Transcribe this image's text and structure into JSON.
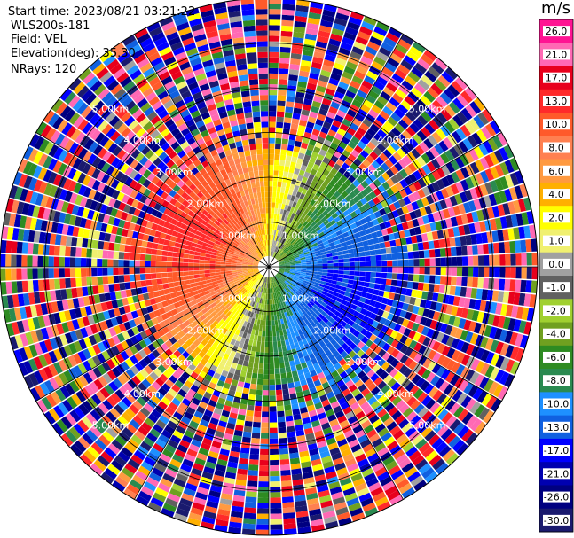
{
  "info": {
    "start_time": "Start time: 2023/08/21 03:21:22",
    "instrument": "WLS200s-181",
    "field": "Field: VEL",
    "elevation": "Elevation(deg): 35.30",
    "nrays": "NRays: 120"
  },
  "colorbar": {
    "unit": "m/s",
    "ticks": [
      "26.0",
      "21.0",
      "17.0",
      "13.0",
      "10.0",
      "8.0",
      "6.0",
      "4.0",
      "2.0",
      "1.0",
      "0.0",
      "-1.0",
      "-2.0",
      "-4.0",
      "-6.0",
      "-8.0",
      "-10.0",
      "-13.0",
      "-17.0",
      "-21.0",
      "-26.0",
      "-30.0"
    ],
    "colors": [
      "#ff1493",
      "#ff69b4",
      "#e8001c",
      "#ff2a2a",
      "#ff5a2a",
      "#ff8050",
      "#ff9a40",
      "#ffb000",
      "#ffff00",
      "#f0f070",
      "#a0a0a0",
      "#606060",
      "#a0d030",
      "#70a020",
      "#2e8b22",
      "#2a8a50",
      "#1e90ff",
      "#1060e0",
      "#0000ff",
      "#0000b0",
      "#000080",
      "#1a1a6e"
    ]
  },
  "chart_data": {
    "type": "heatmap",
    "projection": "polar PPI (plan position indicator)",
    "field": "VEL",
    "units": "m/s",
    "nrays": 120,
    "range_ring_labels": [
      "1.00km",
      "2.00km",
      "3.00km",
      "4.00km",
      "5.00km"
    ],
    "max_range_km": 6.0,
    "spokes_deg": [
      0,
      30,
      60,
      90,
      120,
      150,
      180,
      210,
      240,
      270,
      300,
      330
    ],
    "value_scale": [
      26.0,
      21.0,
      17.0,
      13.0,
      10.0,
      8.0,
      6.0,
      4.0,
      2.0,
      1.0,
      0.0,
      -1.0,
      -2.0,
      -4.0,
      -6.0,
      -8.0,
      -10.0,
      -13.0,
      -17.0,
      -21.0,
      -26.0,
      -30.0
    ],
    "pattern": "positive (red/orange/yellow) velocities toward the west/north-west, negative (blue) toward the east/south-east, near-zero (grey/green) band through the centre; noisy multicolour returns beyond ~2.5 km"
  }
}
